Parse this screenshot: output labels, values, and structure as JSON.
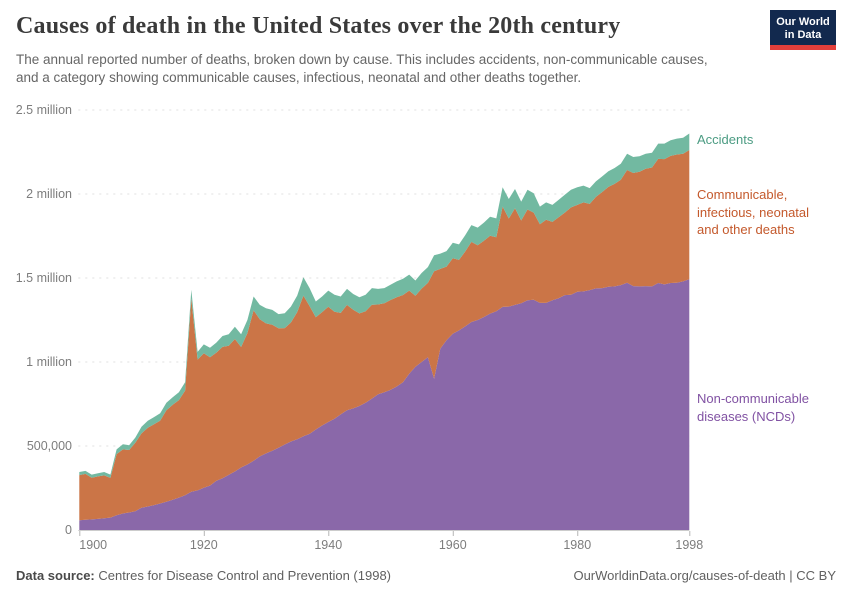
{
  "header": {
    "title": "Causes of death in the United States over the 20th century",
    "subtitle": "The annual reported number of deaths, broken down by cause. This includes accidents, non-communicable causes, and a category showing communicable causes, infectious, neonatal and other deaths together.",
    "logo": {
      "line1": "Our World",
      "line2": "in Data",
      "bg_color": "#12294E",
      "stripe_color": "#E23F3B"
    }
  },
  "chart_data": {
    "type": "area",
    "stacked": true,
    "title": "Causes of death in the United States over the 20th century",
    "unit": "reported deaths per year, thousands",
    "grid": "horizontal dashed",
    "legend_position": "right-of-plot",
    "x": [
      1900,
      1901,
      1902,
      1903,
      1904,
      1905,
      1906,
      1907,
      1908,
      1909,
      1910,
      1911,
      1912,
      1913,
      1914,
      1915,
      1916,
      1917,
      1918,
      1919,
      1920,
      1921,
      1922,
      1923,
      1924,
      1925,
      1926,
      1927,
      1928,
      1929,
      1930,
      1931,
      1932,
      1933,
      1934,
      1935,
      1936,
      1937,
      1938,
      1939,
      1940,
      1941,
      1942,
      1943,
      1944,
      1945,
      1946,
      1947,
      1948,
      1949,
      1950,
      1951,
      1952,
      1953,
      1954,
      1955,
      1956,
      1957,
      1958,
      1959,
      1960,
      1961,
      1962,
      1963,
      1964,
      1965,
      1966,
      1967,
      1968,
      1969,
      1970,
      1971,
      1972,
      1973,
      1974,
      1975,
      1976,
      1977,
      1978,
      1979,
      1980,
      1981,
      1982,
      1983,
      1984,
      1985,
      1986,
      1987,
      1988,
      1989,
      1990,
      1991,
      1992,
      1993,
      1994,
      1995,
      1996,
      1997,
      1998
    ],
    "series": [
      {
        "id": "ncd",
        "name": "Non-communicable diseases (NCDs)",
        "fill": "#8A68A9",
        "label_color": "#8152A3",
        "values": [
          58,
          61,
          63,
          66,
          70,
          74,
          88,
          98,
          104,
          112,
          133,
          140,
          148,
          158,
          168,
          180,
          193,
          207,
          228,
          236,
          252,
          264,
          292,
          308,
          328,
          348,
          372,
          390,
          412,
          438,
          456,
          472,
          490,
          509,
          527,
          540,
          558,
          572,
          598,
          622,
          643,
          662,
          688,
          713,
          724,
          738,
          758,
          782,
          808,
          820,
          834,
          854,
          880,
          930,
          972,
          1000,
          1028,
          900,
          1080,
          1130,
          1168,
          1188,
          1212,
          1238,
          1250,
          1268,
          1288,
          1302,
          1328,
          1330,
          1340,
          1350,
          1368,
          1370,
          1352,
          1352,
          1368,
          1380,
          1398,
          1400,
          1418,
          1420,
          1428,
          1438,
          1440,
          1448,
          1450,
          1458,
          1472,
          1452,
          1450,
          1452,
          1450,
          1470,
          1462,
          1470,
          1472,
          1480,
          1492
        ]
      },
      {
        "id": "communicable",
        "name": "Communicable, infectious, neonatal and other deaths",
        "fill": "#CB7547",
        "label_color": "#C4592C",
        "values": [
          269,
          273,
          248,
          253,
          255,
          236,
          364,
          382,
          372,
          407,
          442,
          469,
          482,
          493,
          545,
          566,
          580,
          623,
          1150,
          778,
          800,
          764,
          763,
          782,
          769,
          789,
          717,
          782,
          896,
          816,
          774,
          750,
          711,
          693,
          708,
          757,
          837,
          761,
          668,
          675,
          686,
          637,
          604,
          627,
          587,
          551,
          544,
          559,
          534,
          530,
          535,
          532,
          519,
          495,
          422,
          437,
          443,
          640,
          474,
          438,
          449,
          420,
          446,
          477,
          445,
          454,
          464,
          440,
          597,
          524,
          575,
          492,
          540,
          519,
          468,
          495,
          466,
          482,
          491,
          520,
          517,
          530,
          513,
          545,
          572,
          594,
          610,
          627,
          671,
          673,
          683,
          698,
          708,
          739,
          746,
          757,
          763,
          759,
          770
        ]
      },
      {
        "id": "accidents",
        "name": "Accidents",
        "fill": "#72B9A1",
        "label_color": "#4C9C83",
        "values": [
          18,
          18,
          19,
          19,
          20,
          20,
          28,
          30,
          29,
          31,
          40,
          41,
          42,
          44,
          45,
          44,
          47,
          50,
          52,
          46,
          53,
          57,
          60,
          65,
          68,
          73,
          76,
          78,
          82,
          86,
          90,
          88,
          84,
          88,
          95,
          98,
          110,
          107,
          94,
          93,
          96,
          101,
          98,
          95,
          94,
          96,
          98,
          99,
          93,
          90,
          91,
          94,
          96,
          95,
          91,
          93,
          94,
          95,
          91,
          92,
          93,
          92,
          97,
          100,
          105,
          108,
          113,
          113,
          115,
          116,
          115,
          113,
          117,
          116,
          105,
          103,
          101,
          103,
          106,
          105,
          105,
          100,
          94,
          92,
          93,
          93,
          95,
          95,
          97,
          95,
          92,
          90,
          87,
          91,
          92,
          93,
          95,
          96,
          98
        ]
      }
    ],
    "y_axis": {
      "ticks_k": [
        0,
        500,
        1000,
        1500,
        2000,
        2500
      ],
      "labels": [
        "0",
        "500,000",
        "1 million",
        "1.5 million",
        "2 million",
        "2.5 million"
      ],
      "max_k": 2500
    },
    "x_axis": {
      "ticks": [
        1900,
        1920,
        1940,
        1960,
        1980,
        1998
      ]
    }
  },
  "legend": {
    "items": [
      {
        "series": "accidents",
        "lines": [
          "Accidents"
        ]
      },
      {
        "series": "communicable",
        "lines": [
          "Communicable,",
          "infectious, neonatal",
          "and other deaths"
        ]
      },
      {
        "series": "ncd",
        "lines": [
          "Non-communicable",
          "diseases (NCDs)"
        ]
      }
    ]
  },
  "footer": {
    "datasource_label": "Data source:",
    "datasource_value": " Centres for Disease Control and Prevention (1998)",
    "credit": "OurWorldinData.org/causes-of-death | CC BY"
  }
}
